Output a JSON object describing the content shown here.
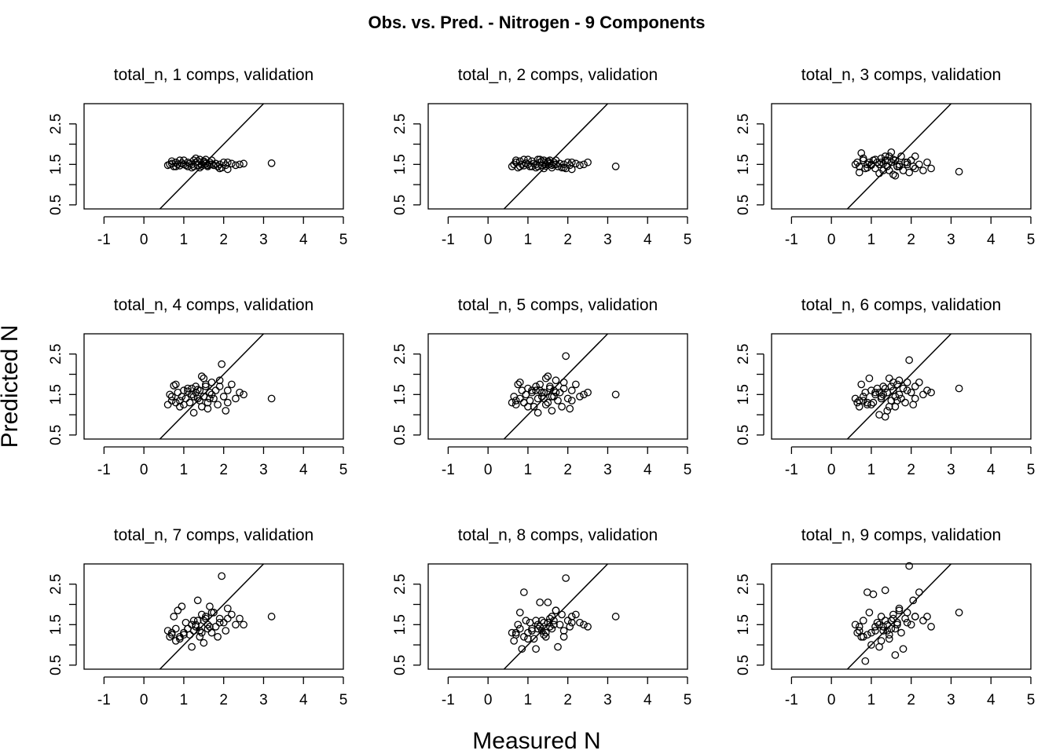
{
  "figure": {
    "title": "Obs. vs. Pred. - Nitrogen - 9 Components",
    "xlabel": "Measured N",
    "ylabel": "Predicted N"
  },
  "chart_data": [
    {
      "type": "scatter",
      "title": "total_n, 1 comps, validation",
      "xlim": [
        -1.5,
        5
      ],
      "ylim": [
        0.4,
        3.0
      ],
      "xticks": [
        -1,
        0,
        1,
        2,
        3,
        4,
        5
      ],
      "yticks": [
        0.5,
        1.5,
        2.5
      ],
      "reference_line": "y = x",
      "grid": false,
      "x": [
        0.6,
        0.65,
        0.7,
        0.75,
        0.8,
        0.85,
        0.9,
        0.95,
        1.0,
        1.05,
        1.1,
        1.15,
        1.2,
        1.25,
        1.3,
        1.35,
        1.4,
        1.45,
        1.5,
        1.55,
        1.6,
        1.65,
        1.7,
        1.75,
        1.8,
        1.85,
        1.9,
        1.95,
        2.0,
        2.05,
        2.1,
        2.2,
        2.3,
        2.4,
        2.5,
        3.2,
        0.7,
        0.9,
        1.1,
        1.3,
        1.4,
        1.5,
        1.6,
        1.7,
        1.9,
        2.1,
        1.2,
        1.35,
        1.45,
        1.55,
        1.65,
        1.25,
        1.0,
        0.8
      ],
      "y": [
        1.48,
        1.5,
        1.52,
        1.45,
        1.55,
        1.5,
        1.47,
        1.53,
        1.5,
        1.48,
        1.55,
        1.52,
        1.5,
        1.6,
        1.55,
        1.48,
        1.62,
        1.5,
        1.58,
        1.52,
        1.45,
        1.55,
        1.5,
        1.48,
        1.52,
        1.45,
        1.5,
        1.42,
        1.55,
        1.48,
        1.38,
        1.52,
        1.48,
        1.5,
        1.52,
        1.53,
        1.58,
        1.6,
        1.45,
        1.65,
        1.42,
        1.55,
        1.48,
        1.6,
        1.4,
        1.55,
        1.42,
        1.58,
        1.46,
        1.62,
        1.5,
        1.45,
        1.6,
        1.45
      ]
    },
    {
      "type": "scatter",
      "title": "total_n, 2 comps, validation",
      "xlim": [
        -1.5,
        5
      ],
      "ylim": [
        0.4,
        3.0
      ],
      "xticks": [
        -1,
        0,
        1,
        2,
        3,
        4,
        5
      ],
      "yticks": [
        0.5,
        1.5,
        2.5
      ],
      "reference_line": "y = x",
      "grid": false,
      "x": [
        0.6,
        0.65,
        0.7,
        0.75,
        0.8,
        0.85,
        0.9,
        0.95,
        1.0,
        1.05,
        1.1,
        1.15,
        1.2,
        1.25,
        1.3,
        1.35,
        1.4,
        1.45,
        1.5,
        1.55,
        1.6,
        1.65,
        1.7,
        1.75,
        1.8,
        1.85,
        1.9,
        1.95,
        2.0,
        2.05,
        2.1,
        2.2,
        2.3,
        2.4,
        2.5,
        3.2,
        0.7,
        0.9,
        1.1,
        1.3,
        1.4,
        1.5,
        1.6,
        1.7,
        1.9,
        2.1,
        1.2,
        1.35,
        1.45,
        1.55,
        1.65,
        1.25,
        1.0,
        0.8
      ],
      "y": [
        1.45,
        1.5,
        1.55,
        1.42,
        1.58,
        1.5,
        1.47,
        1.53,
        1.5,
        1.45,
        1.58,
        1.52,
        1.5,
        1.62,
        1.55,
        1.48,
        1.6,
        1.5,
        1.58,
        1.52,
        1.42,
        1.55,
        1.5,
        1.45,
        1.52,
        1.42,
        1.5,
        1.4,
        1.55,
        1.48,
        1.38,
        1.52,
        1.48,
        1.5,
        1.55,
        1.45,
        1.6,
        1.62,
        1.45,
        1.62,
        1.4,
        1.55,
        1.48,
        1.6,
        1.42,
        1.55,
        1.42,
        1.58,
        1.46,
        1.6,
        1.5,
        1.45,
        1.62,
        1.45
      ]
    },
    {
      "type": "scatter",
      "title": "total_n, 3 comps, validation",
      "xlim": [
        -1.5,
        5
      ],
      "ylim": [
        0.4,
        3.0
      ],
      "xticks": [
        -1,
        0,
        1,
        2,
        3,
        4,
        5
      ],
      "yticks": [
        0.5,
        1.5,
        2.5
      ],
      "reference_line": "y = x",
      "grid": false,
      "x": [
        0.6,
        0.65,
        0.7,
        0.75,
        0.8,
        0.85,
        0.9,
        0.95,
        1.0,
        1.05,
        1.1,
        1.15,
        1.2,
        1.25,
        1.3,
        1.35,
        1.4,
        1.45,
        1.5,
        1.55,
        1.6,
        1.65,
        1.7,
        1.75,
        1.8,
        1.85,
        1.9,
        1.95,
        2.0,
        2.05,
        2.1,
        2.2,
        2.3,
        2.4,
        2.5,
        3.2,
        0.7,
        0.8,
        1.0,
        1.2,
        1.4,
        1.5,
        1.6,
        1.7,
        1.9,
        2.1,
        1.3,
        1.45,
        1.55,
        1.65,
        1.35,
        1.25,
        0.9,
        1.1
      ],
      "y": [
        1.5,
        1.55,
        1.45,
        1.78,
        1.6,
        1.4,
        1.5,
        1.55,
        1.48,
        1.6,
        1.4,
        1.55,
        1.5,
        1.65,
        1.35,
        1.6,
        1.45,
        1.7,
        1.55,
        1.25,
        1.6,
        1.45,
        1.5,
        1.7,
        1.35,
        1.55,
        1.5,
        1.3,
        1.6,
        1.45,
        1.7,
        1.5,
        1.35,
        1.55,
        1.4,
        1.32,
        1.3,
        1.65,
        1.5,
        1.28,
        1.6,
        1.8,
        1.22,
        1.45,
        1.55,
        1.4,
        1.52,
        1.35,
        1.62,
        1.45,
        1.7,
        1.55,
        1.42,
        1.62
      ]
    },
    {
      "type": "scatter",
      "title": "total_n, 4 comps, validation",
      "xlim": [
        -1.5,
        5
      ],
      "ylim": [
        0.4,
        3.0
      ],
      "xticks": [
        -1,
        0,
        1,
        2,
        3,
        4,
        5
      ],
      "yticks": [
        0.5,
        1.5,
        2.5
      ],
      "reference_line": "y = x",
      "grid": false,
      "x": [
        0.6,
        0.65,
        0.7,
        0.75,
        0.8,
        0.85,
        0.9,
        0.95,
        1.0,
        1.05,
        1.1,
        1.15,
        1.2,
        1.25,
        1.3,
        1.35,
        1.4,
        1.45,
        1.5,
        1.55,
        1.6,
        1.65,
        1.7,
        1.75,
        1.8,
        1.85,
        1.9,
        1.95,
        2.0,
        2.05,
        2.1,
        2.2,
        2.3,
        2.4,
        2.5,
        3.2,
        0.7,
        0.8,
        1.0,
        1.2,
        1.4,
        1.5,
        1.6,
        1.7,
        1.9,
        2.1,
        1.3,
        1.45,
        1.55,
        1.65,
        1.35,
        1.25,
        0.9,
        1.1
      ],
      "y": [
        1.25,
        1.5,
        1.35,
        1.72,
        1.3,
        1.55,
        1.2,
        1.45,
        1.6,
        1.4,
        1.65,
        1.3,
        1.5,
        1.05,
        1.7,
        1.4,
        1.6,
        1.95,
        1.45,
        1.75,
        1.3,
        1.55,
        1.8,
        1.4,
        1.6,
        1.25,
        1.7,
        2.25,
        1.45,
        1.1,
        1.6,
        1.75,
        1.4,
        1.55,
        1.5,
        1.4,
        1.45,
        1.75,
        1.25,
        1.65,
        1.35,
        1.9,
        1.15,
        1.5,
        1.85,
        1.3,
        1.55,
        1.2,
        1.7,
        1.4,
        1.62,
        1.45,
        1.35,
        1.58
      ]
    },
    {
      "type": "scatter",
      "title": "total_n, 5 comps, validation",
      "xlim": [
        -1.5,
        5
      ],
      "ylim": [
        0.4,
        3.0
      ],
      "xticks": [
        -1,
        0,
        1,
        2,
        3,
        4,
        5
      ],
      "yticks": [
        0.5,
        1.5,
        2.5
      ],
      "reference_line": "y = x",
      "grid": false,
      "x": [
        0.6,
        0.65,
        0.7,
        0.75,
        0.8,
        0.85,
        0.9,
        0.95,
        1.0,
        1.05,
        1.1,
        1.15,
        1.2,
        1.25,
        1.3,
        1.35,
        1.4,
        1.45,
        1.5,
        1.55,
        1.6,
        1.65,
        1.7,
        1.75,
        1.8,
        1.85,
        1.9,
        1.95,
        2.0,
        2.05,
        2.1,
        2.2,
        2.3,
        2.4,
        2.5,
        3.2,
        0.7,
        0.8,
        1.0,
        1.2,
        1.4,
        1.5,
        1.6,
        1.7,
        1.9,
        2.1,
        1.3,
        1.45,
        1.55,
        1.65,
        1.35,
        1.25,
        0.9,
        1.1
      ],
      "y": [
        1.3,
        1.45,
        1.25,
        1.75,
        1.4,
        1.6,
        1.3,
        1.5,
        1.65,
        1.35,
        1.55,
        1.2,
        1.6,
        1.05,
        1.75,
        1.45,
        1.55,
        1.9,
        1.3,
        1.7,
        1.45,
        1.6,
        1.85,
        1.35,
        1.55,
        1.2,
        1.65,
        2.45,
        1.4,
        1.15,
        1.6,
        1.75,
        1.45,
        1.5,
        1.55,
        1.5,
        1.35,
        1.8,
        1.2,
        1.7,
        1.4,
        1.95,
        1.1,
        1.55,
        1.8,
        1.35,
        1.6,
        1.25,
        1.65,
        1.45,
        1.55,
        1.4,
        1.3,
        1.6
      ]
    },
    {
      "type": "scatter",
      "title": "total_n, 6 comps, validation",
      "xlim": [
        -1.5,
        5
      ],
      "ylim": [
        0.4,
        3.0
      ],
      "xticks": [
        -1,
        0,
        1,
        2,
        3,
        4,
        5
      ],
      "yticks": [
        0.5,
        1.5,
        2.5
      ],
      "reference_line": "y = x",
      "grid": false,
      "x": [
        0.6,
        0.65,
        0.7,
        0.75,
        0.8,
        0.85,
        0.9,
        0.95,
        1.0,
        1.05,
        1.1,
        1.15,
        1.2,
        1.25,
        1.3,
        1.35,
        1.4,
        1.45,
        1.5,
        1.55,
        1.6,
        1.65,
        1.7,
        1.75,
        1.8,
        1.85,
        1.9,
        1.95,
        2.0,
        2.05,
        2.1,
        2.2,
        2.3,
        2.4,
        2.5,
        3.2,
        0.7,
        0.8,
        1.0,
        1.2,
        1.4,
        1.5,
        1.6,
        1.7,
        1.9,
        2.1,
        1.3,
        1.45,
        1.55,
        1.65,
        1.35,
        1.25,
        0.9,
        1.1
      ],
      "y": [
        1.4,
        1.3,
        1.2,
        1.75,
        1.35,
        1.55,
        1.25,
        1.9,
        1.6,
        1.3,
        1.5,
        1.65,
        1.0,
        1.45,
        1.7,
        0.95,
        1.55,
        1.9,
        1.35,
        1.6,
        1.2,
        1.75,
        1.5,
        1.4,
        1.65,
        1.3,
        1.8,
        2.35,
        1.55,
        1.25,
        1.7,
        1.8,
        1.5,
        1.6,
        1.55,
        1.65,
        1.35,
        1.45,
        1.25,
        1.55,
        1.1,
        1.7,
        1.45,
        1.85,
        1.6,
        1.4,
        1.5,
        1.2,
        1.8,
        1.35,
        1.65,
        1.4,
        1.3,
        1.55
      ]
    },
    {
      "type": "scatter",
      "title": "total_n, 7 comps, validation",
      "xlim": [
        -1.5,
        5
      ],
      "ylim": [
        0.4,
        3.0
      ],
      "xticks": [
        -1,
        0,
        1,
        2,
        3,
        4,
        5
      ],
      "yticks": [
        0.5,
        1.5,
        2.5
      ],
      "reference_line": "y = x",
      "grid": false,
      "x": [
        0.6,
        0.65,
        0.7,
        0.75,
        0.8,
        0.85,
        0.9,
        0.95,
        1.0,
        1.05,
        1.1,
        1.15,
        1.2,
        1.25,
        1.3,
        1.35,
        1.4,
        1.45,
        1.5,
        1.55,
        1.6,
        1.65,
        1.7,
        1.75,
        1.8,
        1.85,
        1.9,
        1.95,
        2.0,
        2.05,
        2.1,
        2.2,
        2.3,
        2.4,
        2.5,
        3.2,
        0.7,
        0.8,
        1.0,
        1.2,
        1.4,
        1.5,
        1.6,
        1.7,
        1.9,
        2.1,
        1.3,
        1.45,
        1.55,
        1.65,
        1.35,
        1.25,
        0.9,
        1.1
      ],
      "y": [
        1.35,
        1.2,
        1.25,
        1.7,
        1.4,
        1.85,
        1.15,
        1.95,
        1.3,
        1.55,
        1.4,
        1.25,
        0.95,
        1.6,
        1.45,
        2.1,
        1.35,
        1.75,
        1.05,
        1.65,
        1.5,
        1.95,
        1.3,
        1.8,
        1.45,
        1.2,
        1.65,
        2.7,
        1.55,
        1.35,
        1.9,
        1.75,
        1.5,
        1.65,
        1.5,
        1.7,
        1.3,
        1.1,
        1.25,
        1.5,
        1.2,
        1.6,
        1.4,
        1.8,
        1.55,
        1.65,
        1.5,
        1.3,
        1.7,
        1.45,
        1.6,
        1.35,
        1.2,
        1.4
      ]
    },
    {
      "type": "scatter",
      "title": "total_n, 8 comps, validation",
      "xlim": [
        -1.5,
        5
      ],
      "ylim": [
        0.4,
        3.0
      ],
      "xticks": [
        -1,
        0,
        1,
        2,
        3,
        4,
        5
      ],
      "yticks": [
        0.5,
        1.5,
        2.5
      ],
      "reference_line": "y = x",
      "grid": false,
      "x": [
        0.6,
        0.65,
        0.7,
        0.75,
        0.8,
        0.85,
        0.9,
        0.95,
        1.0,
        1.05,
        1.1,
        1.15,
        1.2,
        1.25,
        1.3,
        1.35,
        1.4,
        1.45,
        1.5,
        1.55,
        1.6,
        1.65,
        1.7,
        1.75,
        1.8,
        1.85,
        1.9,
        1.95,
        2.0,
        2.05,
        2.1,
        2.2,
        2.3,
        2.4,
        2.5,
        3.2,
        0.7,
        0.8,
        1.0,
        1.2,
        1.4,
        1.5,
        1.6,
        1.7,
        1.9,
        2.1,
        1.3,
        1.45,
        1.55,
        1.65,
        1.35,
        1.25,
        0.9,
        1.1
      ],
      "y": [
        1.3,
        1.1,
        1.25,
        1.5,
        1.8,
        0.9,
        1.2,
        1.6,
        1.3,
        1.55,
        1.4,
        1.15,
        0.9,
        1.5,
        2.05,
        1.35,
        1.55,
        1.2,
        2.05,
        1.45,
        1.7,
        1.6,
        1.85,
        0.95,
        1.5,
        1.75,
        1.2,
        2.65,
        1.6,
        1.45,
        1.7,
        1.75,
        1.55,
        1.5,
        1.45,
        1.7,
        1.3,
        1.4,
        1.15,
        1.6,
        1.25,
        1.55,
        1.4,
        1.85,
        1.35,
        1.55,
        1.45,
        1.3,
        1.65,
        1.5,
        1.6,
        1.4,
        2.3,
        1.35
      ]
    },
    {
      "type": "scatter",
      "title": "total_n, 9 comps, validation",
      "xlim": [
        -1.5,
        5
      ],
      "ylim": [
        0.4,
        3.0
      ],
      "xticks": [
        -1,
        0,
        1,
        2,
        3,
        4,
        5
      ],
      "yticks": [
        0.5,
        1.5,
        2.5
      ],
      "reference_line": "y = x",
      "grid": false,
      "x": [
        0.6,
        0.65,
        0.7,
        0.75,
        0.8,
        0.85,
        0.9,
        0.95,
        1.0,
        1.05,
        1.1,
        1.15,
        1.2,
        1.25,
        1.3,
        1.35,
        1.4,
        1.45,
        1.5,
        1.55,
        1.6,
        1.65,
        1.7,
        1.75,
        1.8,
        1.85,
        1.9,
        1.95,
        2.0,
        2.05,
        2.1,
        2.2,
        2.3,
        2.4,
        2.5,
        3.2,
        0.7,
        0.8,
        1.0,
        1.2,
        1.4,
        1.5,
        1.6,
        1.7,
        1.9,
        2.1,
        1.3,
        1.45,
        1.55,
        1.65,
        1.35,
        1.25,
        0.9,
        1.1
      ],
      "y": [
        1.5,
        1.3,
        1.45,
        1.2,
        1.6,
        0.6,
        1.25,
        1.8,
        1.3,
        2.25,
        1.45,
        1.55,
        0.95,
        1.7,
        1.35,
        2.35,
        1.5,
        1.15,
        1.4,
        1.75,
        0.75,
        1.55,
        1.85,
        1.3,
        0.9,
        1.65,
        1.8,
        2.95,
        1.5,
        2.1,
        1.7,
        2.3,
        1.6,
        1.7,
        1.45,
        1.8,
        1.35,
        1.2,
        1.0,
        1.5,
        1.35,
        1.6,
        1.4,
        1.9,
        1.55,
        1.7,
        1.45,
        1.25,
        1.65,
        1.5,
        1.6,
        1.1,
        2.3,
        1.35
      ]
    }
  ]
}
